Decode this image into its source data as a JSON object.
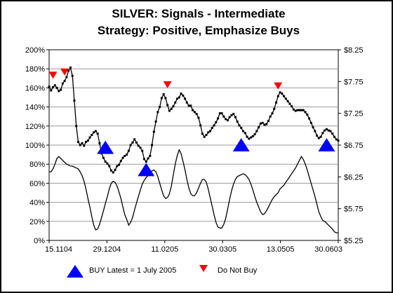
{
  "chart_data": {
    "type": "line",
    "title": "SILVER: Signals - Intermediate",
    "subtitle": "Strategy: Positive, Emphasize Buys",
    "x_tick_labels": [
      "15.1104",
      "29.1204",
      "11.0205",
      "30.0305",
      "13.0505",
      "30.0603"
    ],
    "left_axis": {
      "ylim": [
        0,
        200
      ],
      "ticks": [
        0,
        20,
        40,
        60,
        80,
        100,
        120,
        140,
        160,
        180,
        200
      ],
      "unit": "%",
      "tick_labels": [
        "0%",
        "20%",
        "40%",
        "60%",
        "80%",
        "100%",
        "120%",
        "140%",
        "160%",
        "180%",
        "200%"
      ]
    },
    "right_axis": {
      "ylim": [
        5.25,
        8.25
      ],
      "ticks": [
        5.25,
        5.75,
        6.25,
        6.75,
        7.25,
        7.75,
        8.25
      ],
      "tick_labels": [
        "$5.25",
        "$5.75",
        "$6.25",
        "$6.75",
        "$7.25",
        "$7.75",
        "$8.25"
      ]
    },
    "grid": true,
    "n_points": 150,
    "series": [
      {
        "key": "price",
        "axis": "right",
        "color": "#000000",
        "markers": true,
        "values": [
          7.67,
          7.61,
          7.66,
          7.69,
          7.65,
          7.6,
          7.62,
          7.72,
          7.76,
          7.82,
          7.92,
          7.97,
          7.84,
          7.45,
          7.05,
          6.8,
          6.75,
          6.78,
          6.74,
          6.8,
          6.82,
          6.87,
          6.91,
          6.95,
          6.97,
          6.93,
          6.78,
          6.62,
          6.55,
          6.49,
          6.46,
          6.42,
          6.35,
          6.32,
          6.36,
          6.42,
          6.44,
          6.5,
          6.55,
          6.58,
          6.6,
          6.66,
          6.75,
          6.79,
          6.84,
          6.79,
          6.74,
          6.71,
          6.66,
          6.53,
          6.49,
          6.54,
          6.58,
          6.75,
          6.96,
          7.12,
          7.27,
          7.35,
          7.49,
          7.55,
          7.49,
          7.38,
          7.29,
          7.32,
          7.36,
          7.42,
          7.48,
          7.5,
          7.56,
          7.53,
          7.48,
          7.42,
          7.37,
          7.37,
          7.3,
          7.27,
          7.24,
          7.18,
          7.06,
          6.93,
          6.88,
          6.91,
          6.95,
          6.97,
          7.02,
          7.06,
          7.11,
          7.17,
          7.25,
          7.25,
          7.2,
          7.16,
          7.14,
          7.19,
          7.22,
          7.24,
          7.19,
          7.12,
          7.06,
          7.02,
          6.97,
          6.94,
          6.88,
          6.85,
          6.87,
          6.89,
          6.92,
          6.97,
          7.03,
          7.09,
          7.1,
          7.07,
          7.08,
          7.13,
          7.2,
          7.25,
          7.32,
          7.42,
          7.52,
          7.58,
          7.56,
          7.52,
          7.48,
          7.44,
          7.4,
          7.36,
          7.31,
          7.29,
          7.3,
          7.3,
          7.3,
          7.3,
          7.27,
          7.23,
          7.17,
          7.1,
          7.03,
          6.97,
          6.9,
          6.86,
          6.88,
          6.94,
          6.98,
          7.0,
          6.98,
          6.97,
          6.93,
          6.88,
          6.84,
          6.82
        ]
      },
      {
        "key": "signal",
        "axis": "left",
        "color": "#000000",
        "markers": false,
        "values": [
          72,
          72,
          75,
          80,
          86,
          88,
          86,
          84,
          82,
          80,
          79,
          78,
          78,
          77,
          76,
          75,
          72,
          68,
          62,
          54,
          44,
          35,
          25,
          16,
          11,
          12,
          17,
          24,
          31,
          39,
          46,
          54,
          60,
          62,
          61,
          57,
          51,
          44,
          35,
          27,
          22,
          16,
          19,
          24,
          32,
          39,
          46,
          53,
          59,
          63,
          66,
          68,
          70,
          73,
          74,
          72,
          67,
          60,
          53,
          47,
          44,
          45,
          49,
          57,
          69,
          80,
          89,
          95,
          91,
          83,
          74,
          64,
          55,
          49,
          47,
          47,
          50,
          55,
          60,
          64,
          64,
          61,
          54,
          45,
          36,
          27,
          19,
          14,
          13,
          13,
          17,
          23,
          33,
          43,
          52,
          59,
          64,
          67,
          68,
          69,
          70,
          69,
          67,
          64,
          59,
          53,
          46,
          40,
          35,
          30,
          27,
          28,
          31,
          35,
          39,
          43,
          46,
          48,
          50,
          54,
          56,
          58,
          61,
          64,
          67,
          70,
          73,
          76,
          80,
          84,
          88,
          85,
          80,
          74,
          67,
          60,
          53,
          46,
          38,
          30,
          25,
          21,
          20,
          18,
          16,
          14,
          12,
          9,
          8,
          8
        ]
      }
    ],
    "buy_signals": [
      {
        "x": 29,
        "value": 6.71
      },
      {
        "x": 50,
        "value": 6.36
      },
      {
        "x": 99,
        "value": 6.75
      },
      {
        "x": 143,
        "value": 6.75
      }
    ],
    "do_not_buy_signals": [
      {
        "x": 2,
        "value": 7.85
      },
      {
        "x": 8,
        "value": 7.9
      },
      {
        "x": 61,
        "value": 7.7
      },
      {
        "x": 118,
        "value": 7.68
      }
    ],
    "buy_color": "#0000ff",
    "do_not_buy_color": "#ff0000"
  },
  "legend": {
    "buy_label": "BUY Latest = 1 July 2005",
    "do_not_buy_label": "Do Not Buy"
  }
}
